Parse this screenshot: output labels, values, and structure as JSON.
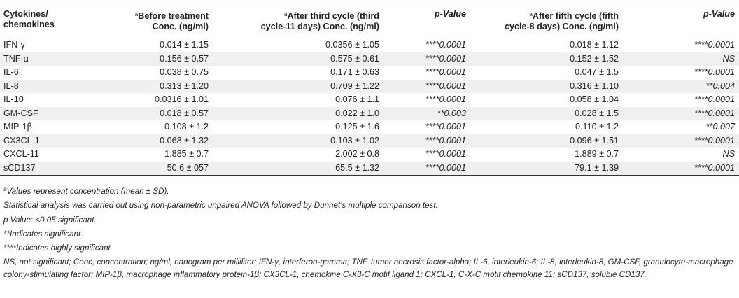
{
  "table": {
    "headers": [
      {
        "line1": "Cytokines/",
        "line2": "chemokines",
        "sup": ""
      },
      {
        "line1": "Before treatment",
        "line2": "Conc. (ng/ml)",
        "sup": "a"
      },
      {
        "line1": "After third cycle (third",
        "line2": "cycle-11 days) Conc. (ng/ml)",
        "sup": "a"
      },
      {
        "line1": "p-Value",
        "line2": "",
        "sup": ""
      },
      {
        "line1": "After fifth cycle (fifth",
        "line2": "cycle-8 days) Conc. (ng/ml)",
        "sup": "a"
      },
      {
        "line1": "p-Value",
        "line2": "",
        "sup": ""
      }
    ],
    "rows": [
      [
        "IFN-γ",
        "0.014 ± 1.15",
        "0.0356 ± 1.05",
        "****0.0001",
        "0.018 ± 1.12",
        "****0.0001"
      ],
      [
        "TNF-α",
        "0.156 ± 0.57",
        "0.575 ± 0.61",
        "****0.0001",
        "0.152 ± 1.52",
        "NS"
      ],
      [
        "IL-6",
        "0.038 ± 0.75",
        "0.171 ± 0.63",
        "****0.0001",
        "0.047 ± 1.5",
        "****0.0001"
      ],
      [
        "IL-8",
        "0.313 ± 1.20",
        "0.709 ± 1.22",
        "****0.0001",
        "0.316 ± 1.10",
        "**0.004"
      ],
      [
        "IL-10",
        "0.0316 ± 1.01",
        "0.076 ± 1.1",
        "****0.0001",
        "0.058 ± 1.04",
        "****0.0001"
      ],
      [
        "GM-CSF",
        "0.018 ± 0.57",
        "0.022 ± 1.0",
        "**0.003",
        "0.028 ± 1.5",
        "****0.0001"
      ],
      [
        "MIP-1β",
        "0.108 ± 1.2",
        "0.125 ± 1.6",
        "****0.0001",
        "0.110 ± 1.2",
        "**0.007"
      ],
      [
        "CX3CL-1",
        "0.068 ± 1.32",
        "0.103 ± 1.02",
        "****0.0001",
        "0.096 ± 1.51",
        "****0.0001"
      ],
      [
        "CXCL-11",
        "1.885 ± 0.7",
        "2.002 ± 0.8",
        "****0.0001",
        "1.889 ± 0.7",
        "NS"
      ],
      [
        "sCD137",
        "50.6 ± 057",
        "65.5 ± 1.32",
        "****0.0001",
        "79.1 ± 1.39",
        "****0.0001"
      ]
    ]
  },
  "notes": {
    "sup_a": "a",
    "n1": "Values represent concentration (mean ± SD).",
    "n2": "Statistical analysis was carried out using non-parametric unpaired ANOVA followed by Dunnet’s multiple comparison test.",
    "n3": "p Value: <0.05 significant.",
    "n4": "**Indicates significant.",
    "n5": "****Indicates highly significant.",
    "n6": "NS, not significant; Conc, concentration; ng/ml, nanogram per milliliter; IFN-γ, interferon-gamma; TNF, tumor necrosis factor-alpha; IL-6, interleukin-6; IL-8, interleukin-8; GM-CSF, granulocyte-macrophage colony-stimulating factor; MIP-1β, macrophage inflammatory protein-1β; CX3CL-1, chemokine C-X3-C motif ligand 1; CXCL-1, C-X-C motif chemokine 11; sCD137, soluble CD137."
  }
}
